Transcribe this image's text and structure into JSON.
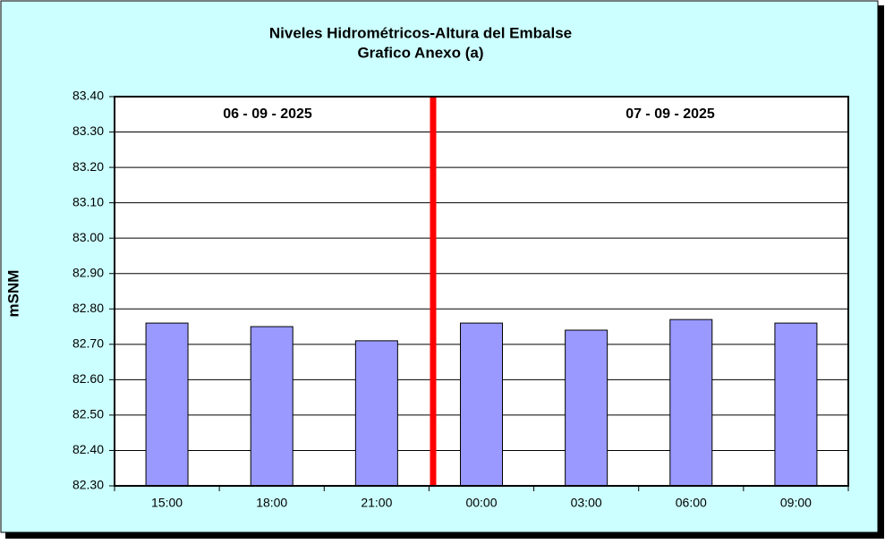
{
  "chart_data": {
    "type": "bar",
    "title": "Niveles Hidrométricos-Altura del Embalse",
    "subtitle": "Grafico Anexo (a)",
    "y_label": "mSNM",
    "annotations": [
      "06 - 09 - 2025",
      "07 - 09 - 2025"
    ],
    "categories": [
      "15:00",
      "18:00",
      "21:00",
      "00:00",
      "03:00",
      "06:00",
      "09:00"
    ],
    "values": [
      82.76,
      82.75,
      82.71,
      82.76,
      82.74,
      82.77,
      82.76
    ],
    "color": "#9999ff",
    "ylim": [
      82.3,
      83.4
    ],
    "yticks": [
      {
        "value": 82.3,
        "label": "82.30"
      },
      {
        "value": 82.4,
        "label": "82.40"
      },
      {
        "value": 82.5,
        "label": "82.50"
      },
      {
        "value": 82.6,
        "label": "82.60"
      },
      {
        "value": 82.7,
        "label": "82.70"
      },
      {
        "value": 82.8,
        "label": "82.80"
      },
      {
        "value": 82.9,
        "label": "82.90"
      },
      {
        "value": 83.0,
        "label": "83.00"
      },
      {
        "value": 83.1,
        "label": "83.10"
      },
      {
        "value": 83.2,
        "label": "83.20"
      },
      {
        "value": 83.3,
        "label": "83.30"
      },
      {
        "value": 83.4,
        "label": "83.40"
      }
    ],
    "grid": true
  }
}
